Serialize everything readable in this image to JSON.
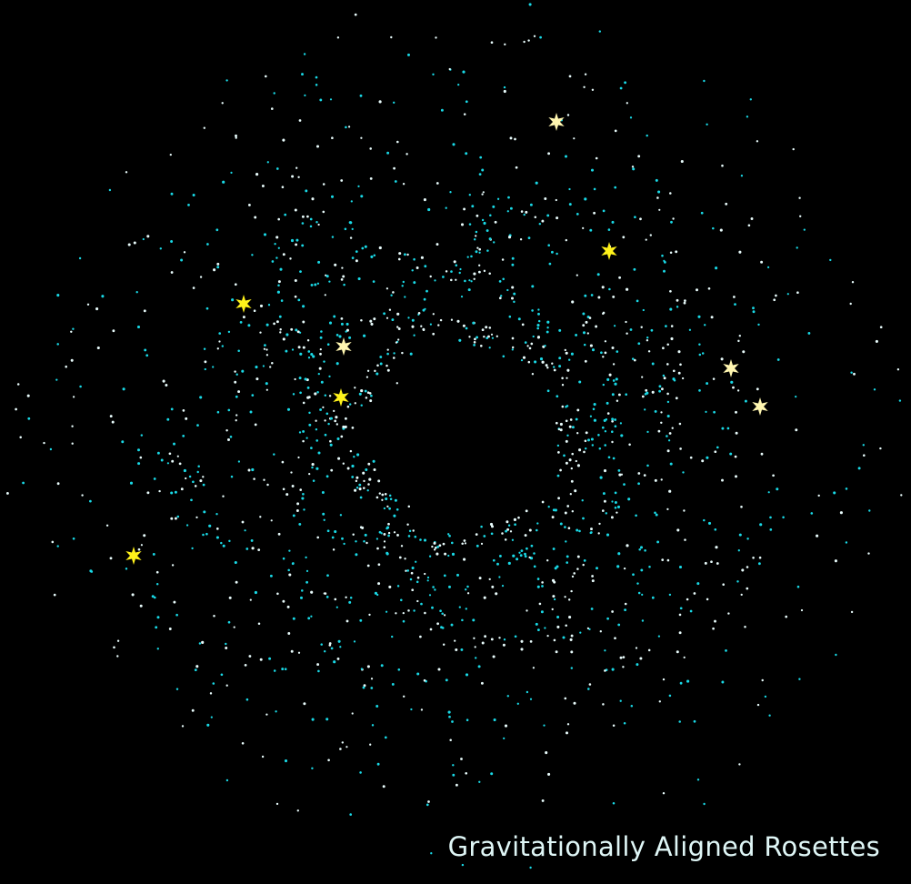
{
  "caption": "Gravitationally Aligned Rosettes",
  "colors": {
    "background": "#000000",
    "particle_cyan": "#19d9e6",
    "particle_white": "#e8fbfb",
    "star_yellow": "#fff21a",
    "star_pale": "#fff6b0",
    "caption": "#dff6f6"
  },
  "stars": [
    {
      "color": "star_pale"
    },
    {
      "color": "star_yellow"
    },
    {
      "color": "star_yellow"
    },
    {
      "color": "star_pale"
    },
    {
      "color": "star_yellow"
    },
    {
      "color": "star_pale"
    },
    {
      "color": "star_pale"
    },
    {
      "color": "star_yellow"
    }
  ]
}
